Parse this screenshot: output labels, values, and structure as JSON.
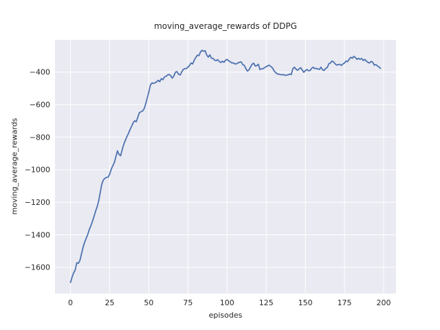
{
  "chart_data": {
    "type": "line",
    "title": "moving_average_rewards of DDPG",
    "xlabel": "episodes",
    "ylabel": "moving_average_rewards",
    "legend": "none",
    "grid": true,
    "style": {
      "plot_bg": "#eaeaf2",
      "grid_color": "#ffffff",
      "line_color": "#4c72b0",
      "text_color": "#262626",
      "figure_bg": "#ffffff"
    },
    "xlim": [
      -9.9,
      207.9
    ],
    "ylim": [
      -1761,
      -202
    ],
    "xticks": [
      0,
      25,
      50,
      75,
      100,
      125,
      150,
      175,
      200
    ],
    "xtick_labels": [
      "0",
      "25",
      "50",
      "75",
      "100",
      "125",
      "150",
      "175",
      "200"
    ],
    "yticks": [
      -400,
      -600,
      -800,
      -1000,
      -1200,
      -1400,
      -1600
    ],
    "ytick_labels": [
      "−400",
      "−600",
      "−800",
      "−1000",
      "−1200",
      "−1400",
      "−1600"
    ],
    "series": [
      {
        "name": "moving_average_rewards",
        "x": [
          0,
          1,
          2,
          3,
          4,
          5,
          6,
          7,
          8,
          9,
          10,
          11,
          12,
          13,
          14,
          15,
          16,
          17,
          18,
          19,
          20,
          21,
          22,
          23,
          24,
          25,
          26,
          27,
          28,
          29,
          30,
          31,
          32,
          33,
          34,
          35,
          36,
          37,
          38,
          39,
          40,
          41,
          42,
          43,
          44,
          45,
          46,
          47,
          48,
          49,
          50,
          51,
          52,
          53,
          54,
          55,
          56,
          57,
          58,
          59,
          60,
          61,
          62,
          63,
          64,
          65,
          66,
          67,
          68,
          69,
          70,
          71,
          72,
          73,
          74,
          75,
          76,
          77,
          78,
          79,
          80,
          81,
          82,
          83,
          84,
          85,
          86,
          87,
          88,
          89,
          90,
          91,
          92,
          93,
          94,
          95,
          96,
          97,
          98,
          99,
          100,
          101,
          102,
          103,
          104,
          105,
          106,
          107,
          108,
          109,
          110,
          111,
          112,
          113,
          114,
          115,
          116,
          117,
          118,
          119,
          120,
          121,
          122,
          123,
          124,
          125,
          126,
          127,
          128,
          129,
          130,
          131,
          132,
          133,
          134,
          135,
          136,
          137,
          138,
          139,
          140,
          141,
          142,
          143,
          144,
          145,
          146,
          147,
          148,
          149,
          150,
          151,
          152,
          153,
          154,
          155,
          156,
          157,
          158,
          159,
          160,
          161,
          162,
          163,
          164,
          165,
          166,
          167,
          168,
          169,
          170,
          171,
          172,
          173,
          174,
          175,
          176,
          177,
          178,
          179,
          180,
          181,
          182,
          183,
          184,
          185,
          186,
          187,
          188,
          189,
          190,
          191,
          192,
          193,
          194,
          195,
          196,
          197,
          198
        ],
        "y": [
          -1693,
          -1660,
          -1634,
          -1616,
          -1572,
          -1575,
          -1558,
          -1518,
          -1478,
          -1446,
          -1422,
          -1398,
          -1368,
          -1344,
          -1318,
          -1288,
          -1256,
          -1228,
          -1192,
          -1140,
          -1088,
          -1063,
          -1053,
          -1047,
          -1046,
          -1028,
          -998,
          -976,
          -956,
          -920,
          -884,
          -906,
          -914,
          -878,
          -844,
          -820,
          -797,
          -777,
          -754,
          -734,
          -712,
          -699,
          -705,
          -677,
          -649,
          -644,
          -639,
          -626,
          -596,
          -560,
          -524,
          -481,
          -467,
          -469,
          -466,
          -460,
          -450,
          -459,
          -440,
          -447,
          -430,
          -426,
          -418,
          -414,
          -422,
          -437,
          -424,
          -401,
          -397,
          -413,
          -418,
          -400,
          -384,
          -379,
          -378,
          -370,
          -360,
          -344,
          -350,
          -328,
          -310,
          -296,
          -299,
          -277,
          -266,
          -272,
          -269,
          -295,
          -308,
          -294,
          -314,
          -316,
          -326,
          -330,
          -323,
          -335,
          -341,
          -333,
          -340,
          -327,
          -322,
          -331,
          -336,
          -344,
          -343,
          -350,
          -349,
          -344,
          -339,
          -337,
          -354,
          -359,
          -379,
          -394,
          -386,
          -368,
          -352,
          -345,
          -363,
          -360,
          -352,
          -384,
          -380,
          -379,
          -372,
          -367,
          -361,
          -358,
          -366,
          -374,
          -392,
          -403,
          -411,
          -413,
          -415,
          -417,
          -415,
          -420,
          -418,
          -417,
          -412,
          -415,
          -380,
          -370,
          -381,
          -389,
          -381,
          -373,
          -387,
          -401,
          -391,
          -384,
          -392,
          -390,
          -377,
          -370,
          -379,
          -377,
          -381,
          -383,
          -370,
          -386,
          -390,
          -377,
          -372,
          -349,
          -344,
          -332,
          -337,
          -349,
          -357,
          -354,
          -352,
          -359,
          -350,
          -344,
          -332,
          -336,
          -321,
          -309,
          -315,
          -303,
          -311,
          -322,
          -315,
          -322,
          -316,
          -329,
          -322,
          -333,
          -340,
          -344,
          -334,
          -339,
          -357,
          -354,
          -362,
          -368,
          -377
        ]
      }
    ]
  }
}
